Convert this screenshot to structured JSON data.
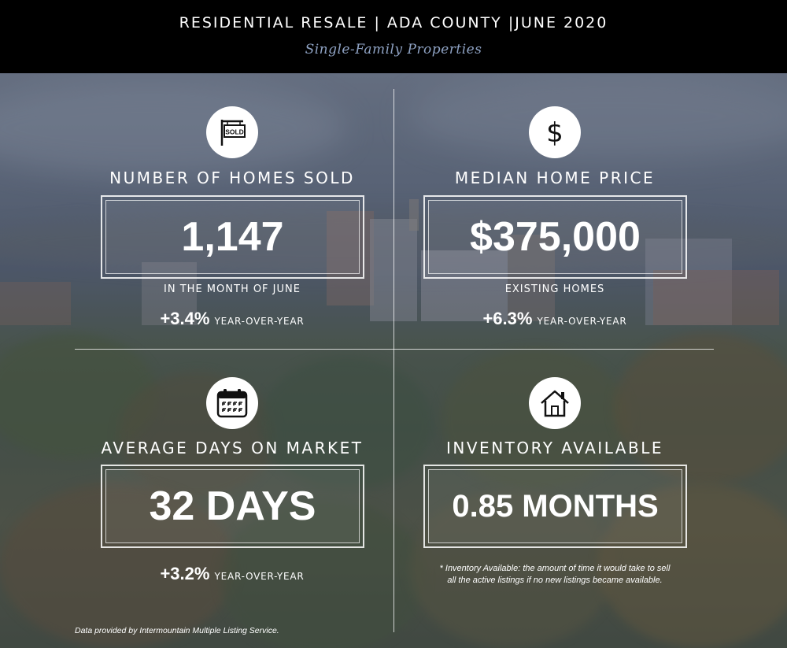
{
  "header": {
    "title": "RESIDENTIAL RESALE | ADA COUNTY |JUNE 2020",
    "subtitle": "Single-Family Properties"
  },
  "metrics": {
    "homes_sold": {
      "icon": "sold-sign-icon",
      "icon_text": "SOLD",
      "label": "NUMBER OF HOMES SOLD",
      "value": "1,147",
      "sub": "IN THE MONTH OF JUNE",
      "change": "+3.4%",
      "change_label": "YEAR-OVER-YEAR"
    },
    "median_price": {
      "icon": "dollar-icon",
      "label": "MEDIAN HOME PRICE",
      "value": "$375,000",
      "sub": "EXISTING HOMES",
      "change": "+6.3%",
      "change_label": "YEAR-OVER-YEAR"
    },
    "days_on_market": {
      "icon": "calendar-icon",
      "label": "AVERAGE DAYS ON MARKET",
      "value": "32 DAYS",
      "change": "+3.2%",
      "change_label": "YEAR-OVER-YEAR"
    },
    "inventory": {
      "icon": "house-icon",
      "label": "INVENTORY AVAILABLE",
      "value": "0.85 MONTHS",
      "note_line1": "* Inventory Available:  the amount of time it would take to sell",
      "note_line2": "all the active listings if no new listings became available."
    }
  },
  "footer": {
    "source": "Data provided by Intermountain Multiple Listing Service."
  },
  "colors": {
    "header_bg": "#000000",
    "subtitle": "#8fa3c4",
    "text": "#ffffff"
  }
}
